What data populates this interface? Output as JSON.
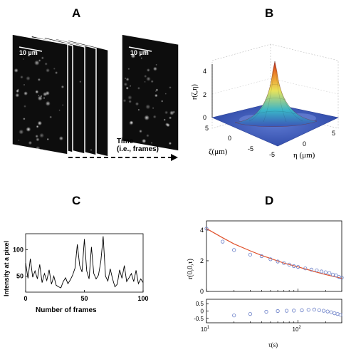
{
  "panels": {
    "a": {
      "letter": "A",
      "scale_bar_label": "10 µm",
      "time_label_line1": "Time",
      "time_label_line2": "(i.e., frames)"
    },
    "b": {
      "letter": "B",
      "z_axis_label": "r(ζ,η)",
      "x_axis_label": "ζ(μm)",
      "y_axis_label": "η (μm)",
      "z_ticks": [
        "4",
        "2",
        "0"
      ],
      "zeta_ticks": [
        "5",
        "0",
        "-5"
      ],
      "eta_ticks": [
        "-5",
        "0",
        "5"
      ],
      "colors": {
        "peak": "#d62d20",
        "mid": "#e8e35a",
        "low": "#3ab5c8",
        "base": "#3b56b8"
      }
    },
    "c": {
      "letter": "C",
      "xlabel": "Number of frames",
      "ylabel": "Intensity at a pixel"
    },
    "d": {
      "letter": "D",
      "ylabel_top": "r(0,0,τ)",
      "xlabel": "τ(s)",
      "colors": {
        "fit": "#e0502a",
        "points": "#6a7fc8"
      }
    }
  },
  "chart_data": [
    {
      "type": "line",
      "panel": "C",
      "xlabel": "Number of frames",
      "ylabel": "Intensity at a pixel",
      "xlim": [
        0,
        100
      ],
      "ylim": [
        20,
        130
      ],
      "xticks": [
        0,
        50,
        100
      ],
      "yticks": [
        50,
        100
      ],
      "series": [
        {
          "x": [
            0,
            2,
            4,
            6,
            8,
            10,
            12,
            14,
            16,
            18,
            20,
            22,
            24,
            26,
            28,
            30,
            32,
            34,
            36,
            38,
            40,
            42,
            44,
            46,
            48,
            50,
            52,
            54,
            56,
            58,
            60,
            62,
            64,
            66,
            68,
            70,
            72,
            74,
            76,
            78,
            80,
            82,
            84,
            86,
            88,
            90,
            92,
            94,
            96,
            98,
            100
          ],
          "values": [
            75,
            46,
            83,
            48,
            60,
            45,
            72,
            38,
            55,
            42,
            62,
            35,
            50,
            33,
            30,
            28,
            40,
            47,
            36,
            43,
            52,
            65,
            110,
            70,
            58,
            120,
            60,
            45,
            105,
            55,
            45,
            52,
            78,
            125,
            50,
            41,
            64,
            45,
            30,
            35,
            62,
            46,
            70,
            40,
            47,
            55,
            40,
            61,
            36,
            45,
            38
          ]
        }
      ]
    },
    {
      "type": "scatter",
      "panel": "D (top)",
      "ylabel": "r(0,0,τ)",
      "xscale": "log",
      "xlim": [
        10,
        300
      ],
      "ylim": [
        0,
        4.6
      ],
      "yticks": [
        0,
        2,
        4
      ],
      "series": [
        {
          "kind": "points",
          "x": [
            10,
            15,
            20,
            30,
            40,
            50,
            60,
            70,
            80,
            90,
            100,
            120,
            140,
            160,
            180,
            200,
            220,
            240,
            260,
            280,
            300
          ],
          "values": [
            4.1,
            3.25,
            2.7,
            2.4,
            2.3,
            2.1,
            1.95,
            1.85,
            1.75,
            1.65,
            1.6,
            1.5,
            1.42,
            1.38,
            1.3,
            1.25,
            1.2,
            1.1,
            1.05,
            0.95,
            0.9
          ]
        },
        {
          "kind": "fit",
          "x": [
            10,
            15,
            20,
            30,
            40,
            50,
            70,
            100,
            150,
            200,
            300
          ],
          "values": [
            4.1,
            3.5,
            3.1,
            2.65,
            2.35,
            2.15,
            1.85,
            1.6,
            1.3,
            1.1,
            0.85
          ]
        }
      ]
    },
    {
      "type": "scatter",
      "panel": "D (bottom, residuals)",
      "xlabel": "τ(s)",
      "xscale": "log",
      "xlim": [
        10,
        300
      ],
      "ylim": [
        -0.8,
        0.8
      ],
      "yticks": [
        0.5,
        0,
        -0.5
      ],
      "yticklabels": [
        "0.5",
        "0",
        "-0.5"
      ],
      "xticks": [
        10,
        100
      ],
      "xticklabels": [
        "10^1",
        "10^2"
      ],
      "series": [
        {
          "kind": "points",
          "x": [
            20,
            30,
            45,
            60,
            75,
            90,
            110,
            130,
            150,
            170,
            190,
            210,
            230,
            250,
            270,
            290
          ],
          "values": [
            -0.3,
            -0.2,
            -0.05,
            0.0,
            0.02,
            0.03,
            0.05,
            0.08,
            0.1,
            0.06,
            0.02,
            -0.03,
            -0.08,
            -0.15,
            -0.2,
            -0.25
          ]
        }
      ]
    }
  ]
}
